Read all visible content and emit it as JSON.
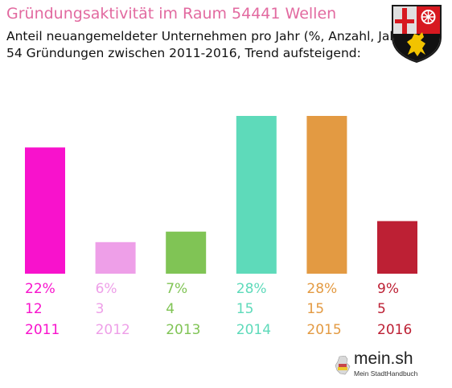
{
  "header": {
    "title": "Gründungsaktivität im Raum 54441 Wellen",
    "subtitle_line1": "Anteil neuangemeldeter Unternehmen pro Jahr (%, Anzahl, Jahr)",
    "subtitle_line2": "54 Gründungen zwischen 2011-2016, Trend aufsteigend:"
  },
  "logo": {
    "name": "mein.sh",
    "tagline": "Mein StadtHandbuch"
  },
  "colors": {
    "title": "#e26aa0",
    "bars": [
      "#f812cc",
      "#ee9fe8",
      "#80c455",
      "#5edaba",
      "#e39a42",
      "#bd2034"
    ]
  },
  "chart_data": {
    "type": "bar",
    "categories": [
      "2011",
      "2012",
      "2013",
      "2014",
      "2015",
      "2016"
    ],
    "percent_labels": [
      "22%",
      "6%",
      "7%",
      "28%",
      "28%",
      "9%"
    ],
    "count_labels": [
      "12",
      "3",
      "4",
      "15",
      "15",
      "5"
    ],
    "values": [
      12,
      3,
      4,
      15,
      15,
      5
    ],
    "grid": false,
    "legend": "none"
  }
}
